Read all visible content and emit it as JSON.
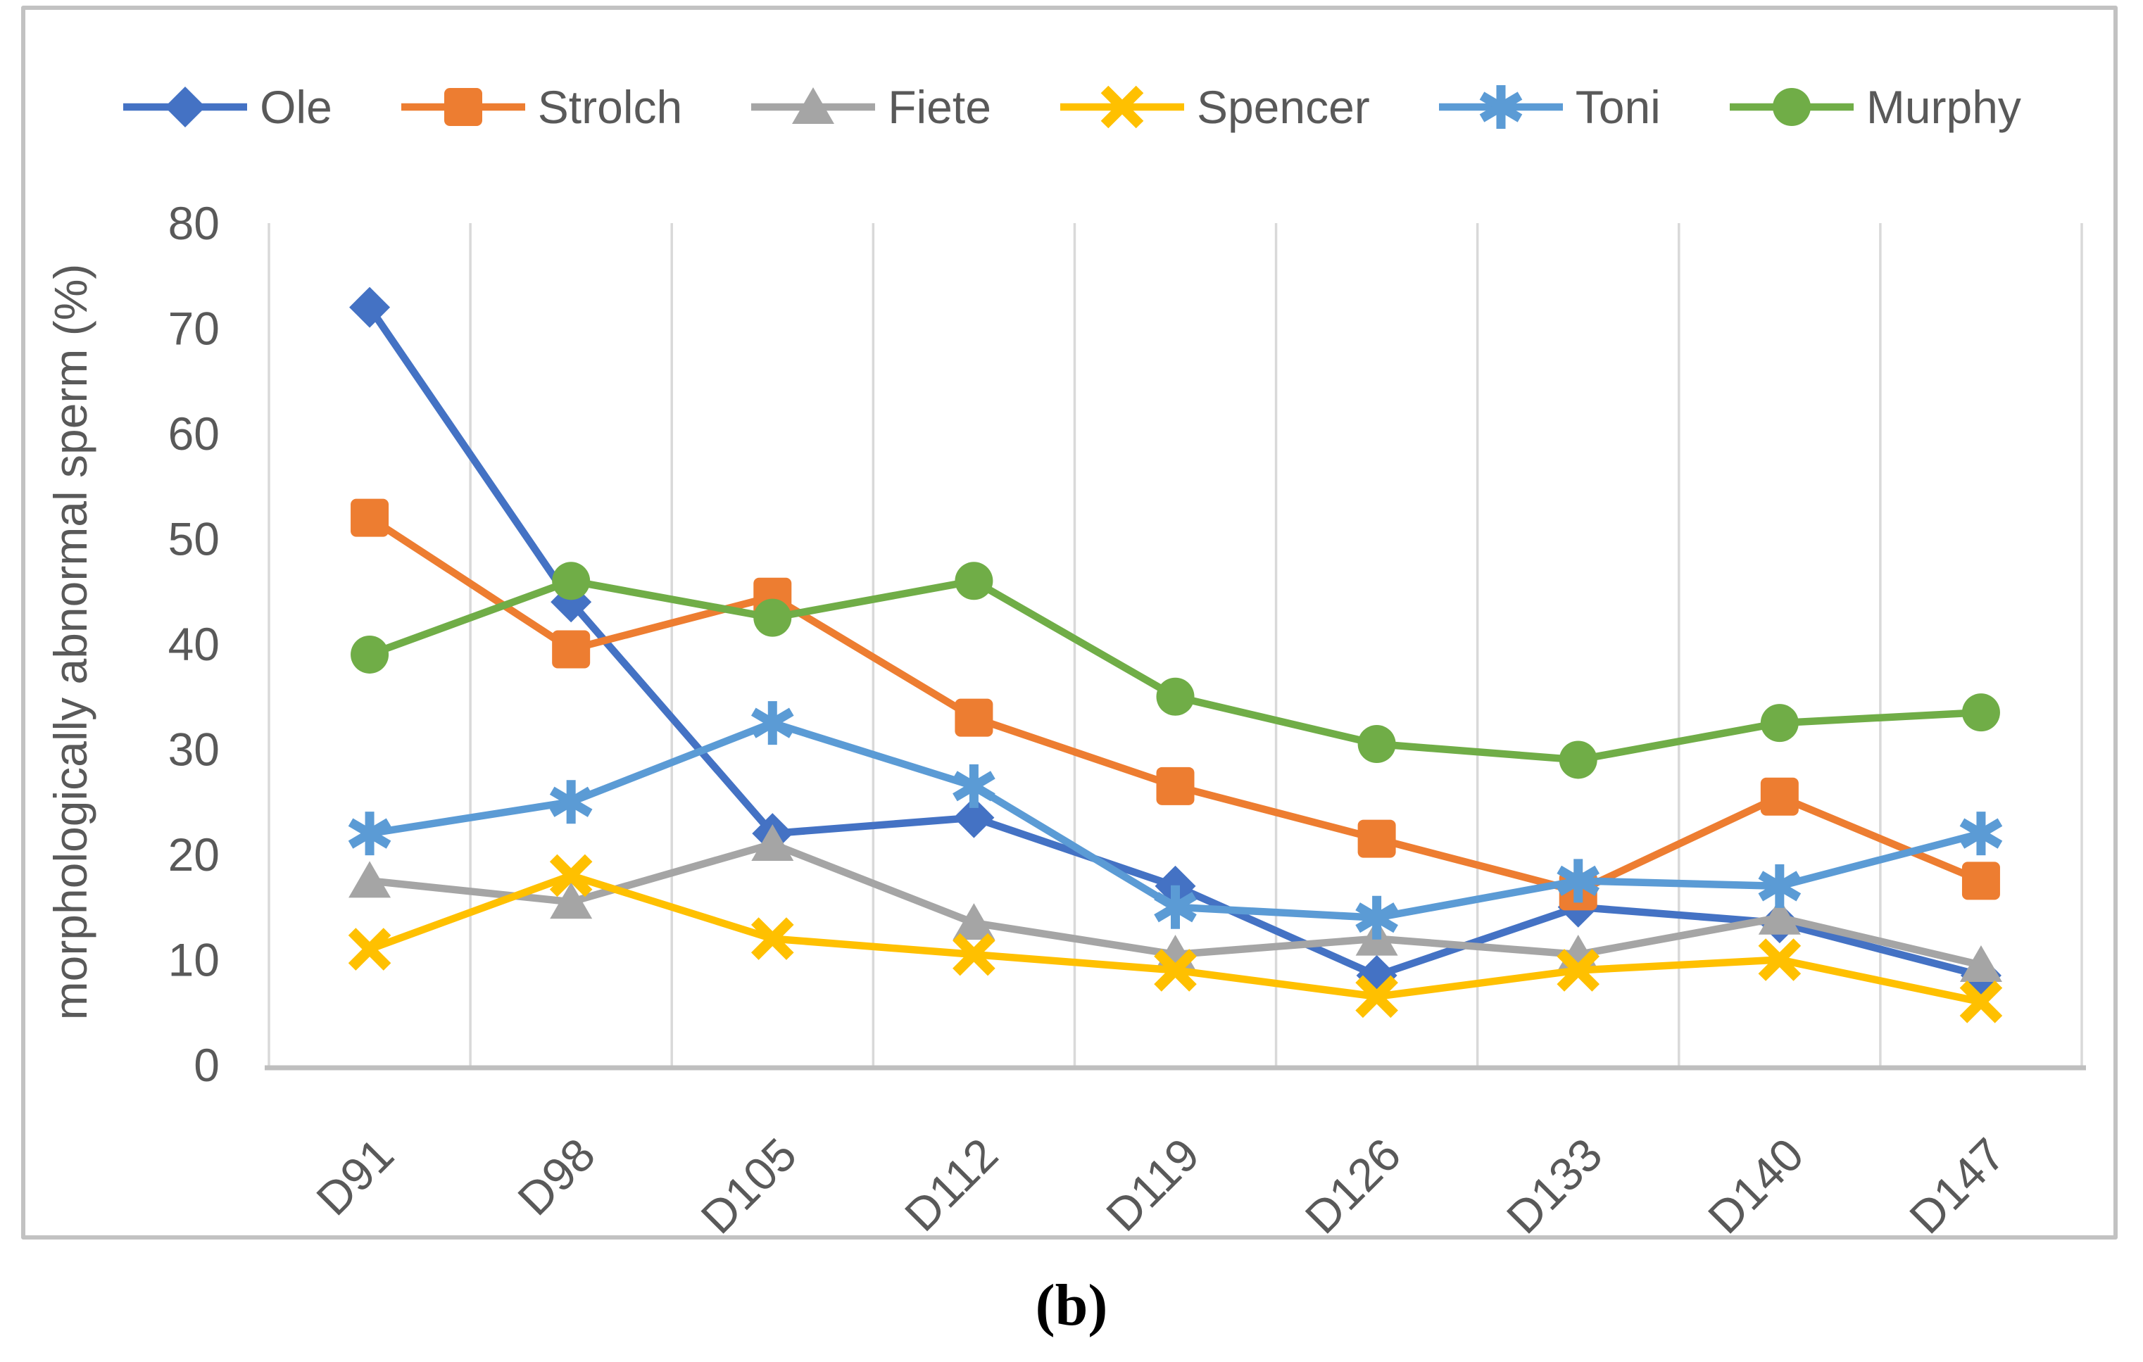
{
  "figure": {
    "caption": "(b)"
  },
  "colors": {
    "axis_text": "#595959",
    "gridline": "#D9D9D9",
    "axis_line": "#BFBFBF",
    "frame_border": "#C2C2C2",
    "background": "#FFFFFF"
  },
  "chart_data": {
    "type": "line",
    "title": "",
    "xlabel": "",
    "ylabel": "morphologically abnormal sperm (%)",
    "ylim": [
      0,
      80
    ],
    "ytick_step": 10,
    "yticks": [
      0,
      10,
      20,
      30,
      40,
      50,
      60,
      70,
      80
    ],
    "grid": "vertical-only",
    "legend_position": "top",
    "categories": [
      "D91",
      "D98",
      "D105",
      "D112",
      "D119",
      "D126",
      "D133",
      "D140",
      "D147"
    ],
    "series": [
      {
        "name": "Ole",
        "color": "#4472C4",
        "marker": "diamond",
        "values": [
          72,
          44,
          22,
          23.5,
          17,
          8.5,
          15,
          13.5,
          8.5
        ]
      },
      {
        "name": "Strolch",
        "color": "#ED7D31",
        "marker": "square",
        "values": [
          52,
          39.5,
          44.5,
          33,
          26.5,
          21.5,
          16.5,
          25.5,
          17.5
        ]
      },
      {
        "name": "Fiete",
        "color": "#A5A5A5",
        "marker": "triangle",
        "values": [
          17.5,
          15.5,
          21,
          13.5,
          10.5,
          12,
          10.5,
          14,
          9.5
        ]
      },
      {
        "name": "Spencer",
        "color": "#FFC000",
        "marker": "x",
        "values": [
          11,
          18,
          12,
          10.5,
          9,
          6.5,
          9,
          10,
          6
        ]
      },
      {
        "name": "Toni",
        "color": "#5B9BD5",
        "marker": "star6",
        "values": [
          22,
          25,
          32.5,
          26.5,
          15,
          14,
          17.5,
          17,
          22
        ]
      },
      {
        "name": "Murphy",
        "color": "#70AD47",
        "marker": "circle",
        "values": [
          39,
          46,
          42.5,
          46,
          35,
          30.5,
          29,
          32.5,
          33.5
        ]
      }
    ]
  }
}
